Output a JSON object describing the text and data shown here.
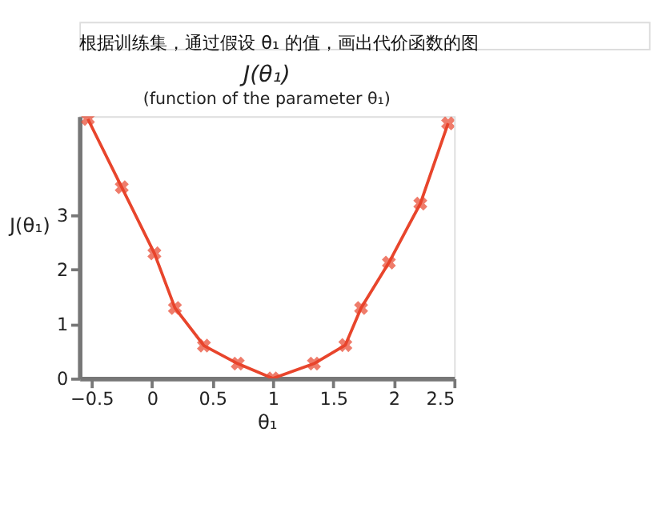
{
  "chart_data": {
    "type": "line",
    "title": "J(θ₁)",
    "subtitle": "(function of the parameter θ₁)",
    "xlabel": "θ₁",
    "ylabel": "J(θ₁)",
    "annotations": [
      "根据训练集，通过假设 θ₁ 的值，画出代价函数的图"
    ],
    "x": [
      -0.53,
      -0.25,
      0.02,
      0.19,
      0.43,
      0.71,
      1.0,
      1.34,
      1.6,
      1.73,
      1.96,
      2.22,
      2.45
    ],
    "series": [
      {
        "color": "#e8452c",
        "values": [
          4.75,
          3.5,
          2.29,
          1.29,
          0.6,
          0.27,
          0,
          0.27,
          0.61,
          1.29,
          2.12,
          3.2,
          4.67
        ]
      }
    ],
    "xlim": [
      -0.6,
      2.5
    ],
    "ylim": [
      0,
      4.8
    ],
    "xticks": [
      -0.5,
      0,
      0.5,
      1,
      1.5,
      2,
      2.5
    ],
    "yticks": [
      0,
      1,
      2,
      3
    ],
    "grid": false,
    "marker": "cross",
    "line_style": "solid"
  }
}
